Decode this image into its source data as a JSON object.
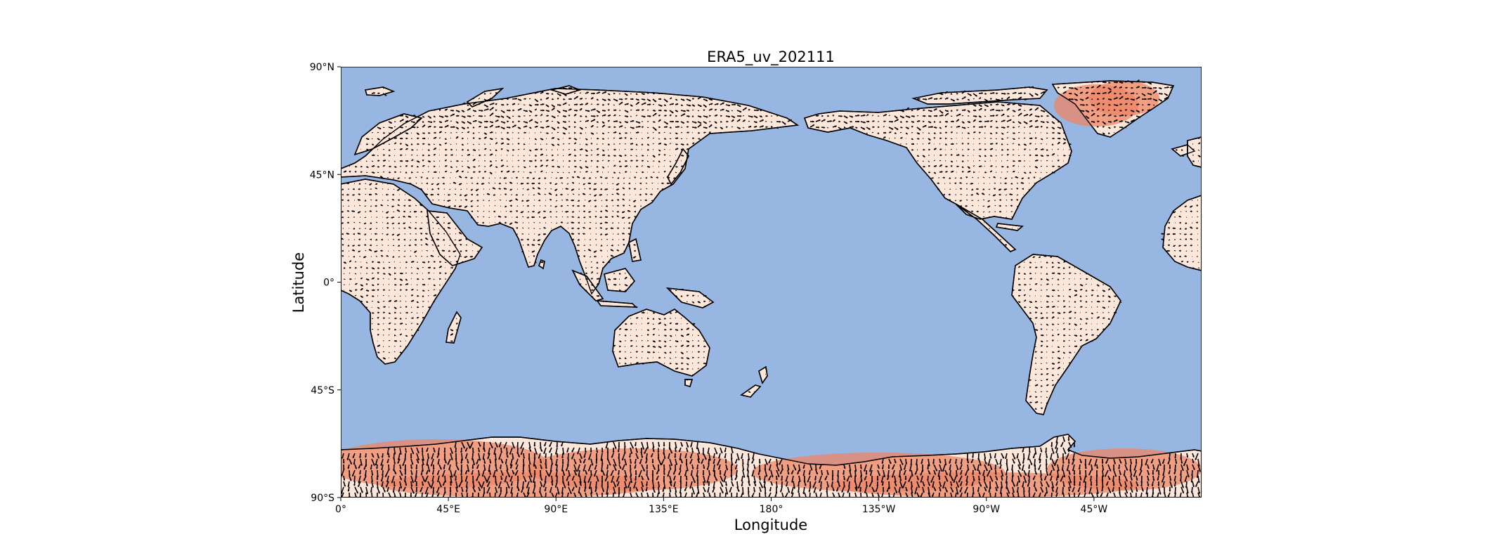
{
  "figure": {
    "title": "ERA5_uv_202111",
    "xlabel": "Longitude",
    "ylabel": "Latitude"
  },
  "map": {
    "projection": "PlateCarree (central longitude 180°)",
    "ocean_color": "#97b6e1",
    "land_color": "#fde6da",
    "strong_wind_color": "#ec8566",
    "arrow_color": "#000000",
    "x_ticks": [
      "0°",
      "45°E",
      "90°E",
      "135°E",
      "180°",
      "135°W",
      "90°W",
      "45°W"
    ],
    "y_ticks": [
      "90°N",
      "45°N",
      "0°",
      "45°S",
      "90°S"
    ],
    "lon_range": [
      0,
      360
    ],
    "lat_range": [
      -90,
      90
    ]
  }
}
